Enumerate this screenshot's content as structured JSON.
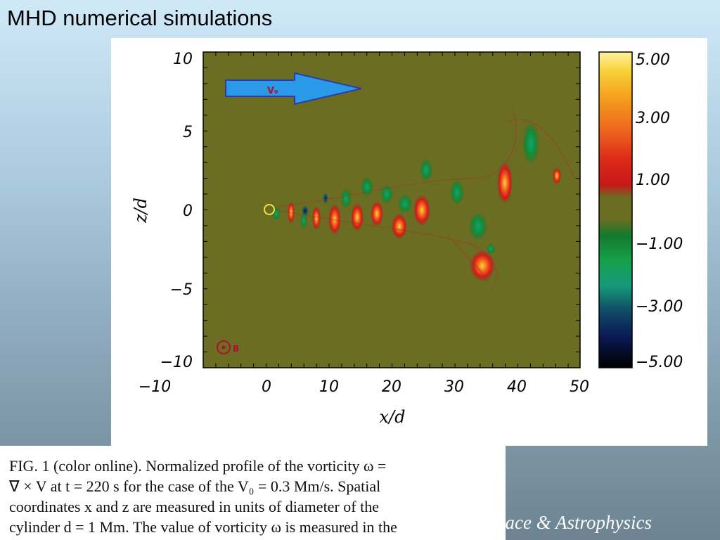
{
  "slide": {
    "title": "MHD numerical simulations",
    "footer": "pace & Astrophysics"
  },
  "figure": {
    "xlabel": "x/d",
    "ylabel": "z/d",
    "x_ticks": [
      "−10",
      "0",
      "10",
      "20",
      "30",
      "40",
      "50"
    ],
    "y_ticks": [
      "10",
      "5",
      "0",
      "−5",
      "−10"
    ],
    "colorbar_labels": [
      "5.00",
      "3.00",
      "1.00",
      "−1.00",
      "−3.00",
      "−5.00"
    ],
    "arrow_label": "V₀",
    "field_label": "B",
    "background_color": "#6b6d22"
  },
  "caption": {
    "lines": [
      "FIG. 1 (color online).   Normalized profile of the vorticity ω =",
      "∇ × V at t = 220 s for the case of the V₀ = 0.3 Mm/s. Spatial",
      "coordinates x and z are measured in units of diameter of the",
      "cylinder d = 1 Mm. The value of vorticity ω is measured in the"
    ]
  }
}
